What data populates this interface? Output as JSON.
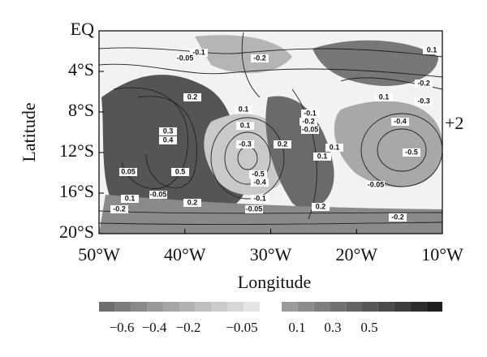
{
  "chart_data": {
    "type": "contour",
    "xlabel": "Longitude",
    "ylabel": "Latitude",
    "xlim": [
      -50,
      -10
    ],
    "xticks": [
      {
        "value": -50,
        "label": "50°W"
      },
      {
        "value": -40,
        "label": "40°W"
      },
      {
        "value": -30,
        "label": "30°W"
      },
      {
        "value": -20,
        "label": "20°W"
      },
      {
        "value": -10,
        "label": "10°W"
      }
    ],
    "ylim": [
      -20,
      0
    ],
    "yticks": [
      {
        "value": 0,
        "label": "EQ"
      },
      {
        "value": -4,
        "label": "4°S"
      },
      {
        "value": -8,
        "label": "8°S"
      },
      {
        "value": -12,
        "label": "12°S"
      },
      {
        "value": -16,
        "label": "16°S"
      },
      {
        "value": -20,
        "label": "20°S"
      }
    ],
    "annotation": "+2",
    "contour_labels": [
      -0.1,
      -0.05,
      -0.2,
      0.1,
      -0.2,
      -0.3,
      0.1,
      0.2,
      0.1,
      -0.1,
      -0.2,
      -0.05,
      0.3,
      0.4,
      0.1,
      -0.3,
      0.2,
      0.1,
      0.1,
      -0.4,
      -0.5,
      0.5,
      0.05,
      -0.5,
      -0.4,
      -0.1,
      -0.05,
      0.1,
      0.2,
      -0.2,
      -0.05,
      0.2,
      -0.2,
      -0.05
    ],
    "colorbar": {
      "negative_colors": [
        "#6e6e6e",
        "#7c7c7c",
        "#8a8a8a",
        "#989898",
        "#a5a5a5",
        "#b2b2b2",
        "#bfbfbf",
        "#cbcbcb",
        "#d7d7d7",
        "#e4e4e4"
      ],
      "positive_colors": [
        "#9a9a9a",
        "#8c8c8c",
        "#7e7e7e",
        "#717171",
        "#646464",
        "#575757",
        "#4a4a4a",
        "#3c3c3c",
        "#2e2e2e",
        "#1e1e1e"
      ],
      "ticks": [
        {
          "value": -0.6,
          "label": "−0.6"
        },
        {
          "value": -0.4,
          "label": "−0.4"
        },
        {
          "value": -0.2,
          "label": "−0.2"
        },
        {
          "value": -0.05,
          "label": "−0.05"
        },
        0.1,
        0.3,
        0.5
      ]
    }
  }
}
